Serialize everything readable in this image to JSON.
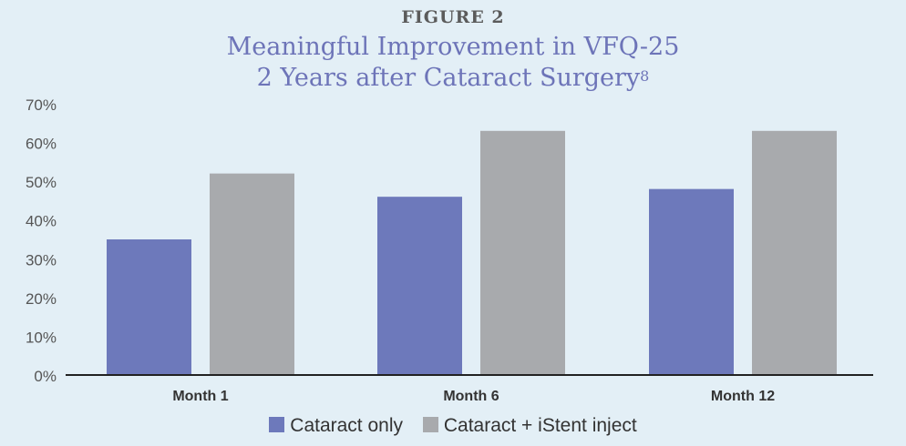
{
  "figure": {
    "label": "FIGURE 2"
  },
  "title_lines": [
    "Meaningful Improvement in VFQ-25",
    "2 Years after Cataract Surgery"
  ],
  "title_superscript": "8",
  "colors": {
    "cataract_only": "#6d79bb",
    "cataract_istent": "#a8aaad",
    "axis": "#222222",
    "title": "#6d74b8",
    "background": "#e3eff6"
  },
  "chart_data": {
    "type": "bar",
    "title": "Meaningful Improvement in VFQ-25 2 Years after Cataract Surgery",
    "categories": [
      "Month 1",
      "Month 6",
      "Month 12"
    ],
    "series": [
      {
        "name": "Cataract only",
        "values": [
          35,
          46,
          48
        ]
      },
      {
        "name": "Cataract + iStent inject",
        "values": [
          52,
          63,
          63
        ]
      }
    ],
    "ylim": [
      0,
      70
    ],
    "yticks": [
      "0%",
      "10%",
      "20%",
      "30%",
      "40%",
      "50%",
      "60%",
      "70%"
    ],
    "ytick_values": [
      0,
      10,
      20,
      30,
      40,
      50,
      60,
      70
    ],
    "grid": false,
    "legend_position": "bottom-center"
  }
}
